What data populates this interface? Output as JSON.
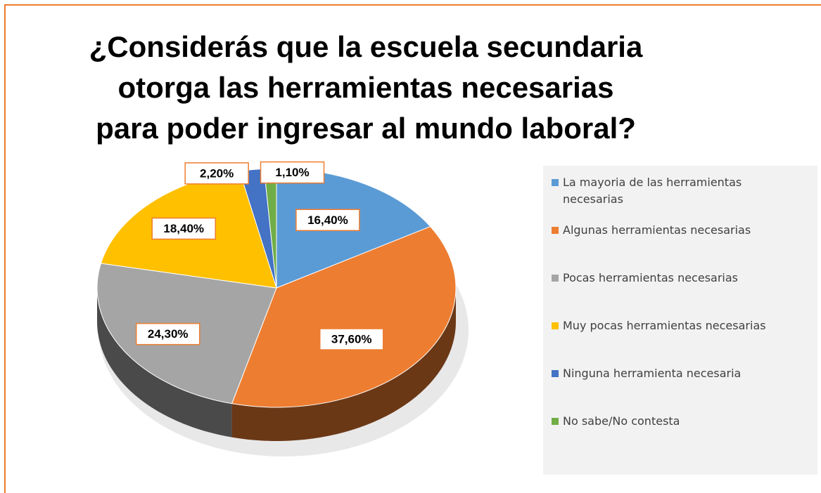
{
  "chart_data": {
    "type": "pie",
    "title": "¿Considerás que la escuela secundaria otorga las herramientas necesarias para poder ingresar al mundo laboral?",
    "categories": [
      "La mayoria de las herramientas necesarias",
      "Algunas herramientas necesarias",
      "Pocas herramientas necesarias",
      "Muy pocas herramientas necesarias",
      "Ninguna herramienta necesaria",
      "No sabe/No contesta"
    ],
    "values": [
      16.4,
      37.6,
      24.3,
      18.4,
      2.2,
      1.1
    ],
    "value_labels": [
      "16,40%",
      "37,60%",
      "24,30%",
      "18,40%",
      "2,20%",
      "1,10%"
    ],
    "colors": [
      "#5b9bd5",
      "#ed7d31",
      "#a5a5a5",
      "#ffc000",
      "#4472c4",
      "#70ad47"
    ],
    "legend": "right"
  }
}
